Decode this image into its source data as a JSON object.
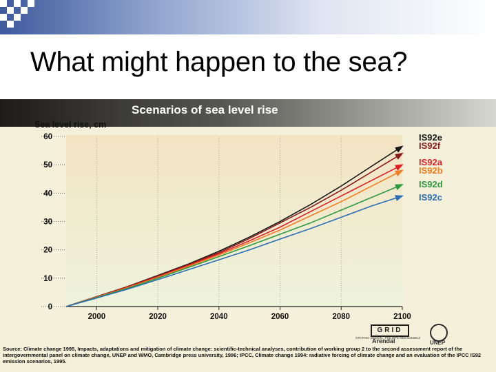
{
  "slide": {
    "title": "What might happen to the sea?"
  },
  "figure": {
    "source_text": "Source: Climate change 1995, Impacts, adaptations and mitigation of climate change: scientific-technical analyses, contribution of working group 2 to the second assessment report of the intergovernmental panel on climate change, UNEP and WMO, Cambridge press university, 1996; IPCC, Climate change 1994: radiative forcing of climate change and an evaluation of the IPCC IS92 emission scenarios, 1995.",
    "logo_grid": "GRID",
    "logo_arendal": "Arendal",
    "logo_unep": "UNEP",
    "credit": "GRAPHIC DESIGN : PHILIPPE REKACEWICZ"
  },
  "chart_data": {
    "type": "line",
    "title": "Scenarios of sea level rise",
    "ylabel": "Sea level rise, cm",
    "xlabel": "",
    "x": [
      1990,
      2000,
      2010,
      2020,
      2030,
      2040,
      2050,
      2060,
      2070,
      2080,
      2090,
      2100
    ],
    "xticks": [
      2000,
      2020,
      2040,
      2060,
      2080,
      2100
    ],
    "yticks": [
      0,
      10,
      20,
      30,
      40,
      50,
      60
    ],
    "xlim": [
      1990,
      2100
    ],
    "ylim": [
      0,
      60
    ],
    "grid": false,
    "legend_position": "right",
    "series": [
      {
        "name": "IS92e",
        "color": "#1a1a1a",
        "values": [
          0,
          3.5,
          7,
          11,
          15,
          19.5,
          24.5,
          30,
          36,
          42.5,
          49.5,
          56.5
        ]
      },
      {
        "name": "IS92f",
        "color": "#8b1a1a",
        "values": [
          0,
          3.5,
          7,
          10.8,
          14.8,
          19,
          24,
          29.5,
          35,
          41,
          47.5,
          54
        ]
      },
      {
        "name": "IS92a",
        "color": "#e31e24",
        "values": [
          0,
          3.4,
          6.8,
          10.5,
          14.5,
          18.6,
          23.2,
          28,
          33.5,
          39,
          44.5,
          50
        ]
      },
      {
        "name": "IS92b",
        "color": "#ef7d22",
        "values": [
          0,
          3.3,
          6.6,
          10.3,
          14.2,
          18.2,
          22.5,
          27,
          32,
          37,
          42.5,
          48
        ]
      },
      {
        "name": "IS92d",
        "color": "#2e9a3e",
        "values": [
          0,
          3.2,
          6.4,
          10,
          13.8,
          17.6,
          21.5,
          25.5,
          29.5,
          34,
          38.5,
          43
        ]
      },
      {
        "name": "IS92c",
        "color": "#2a6db5",
        "values": [
          0,
          3.0,
          6.1,
          9.5,
          13,
          16.5,
          20,
          23.8,
          27.5,
          31.5,
          35.5,
          39
        ]
      }
    ]
  }
}
